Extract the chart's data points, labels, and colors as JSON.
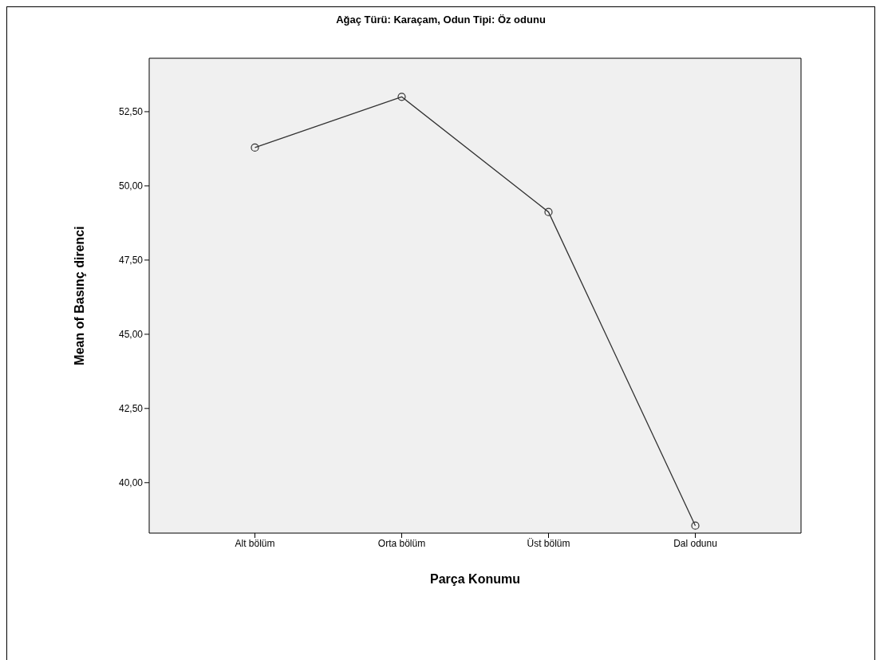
{
  "chart_data": {
    "type": "line",
    "title": "Ağaç Türü: Karaçam, Odun Tipi: Öz odunu",
    "xlabel": "Parça Konumu",
    "ylabel": "Mean of Basınç direnci",
    "categories": [
      "Alt bölüm",
      "Orta bölüm",
      "Üst bölüm",
      "Dal odunu"
    ],
    "series": [
      {
        "color": "#333333",
        "values": [
          51.29,
          53.0,
          49.12,
          38.55
        ]
      }
    ],
    "ylim": [
      38.3,
      54.3
    ],
    "yticks": [
      {
        "value": 40,
        "label": "40,00"
      },
      {
        "value": 42.5,
        "label": "42,50"
      },
      {
        "value": 45,
        "label": "45,00"
      },
      {
        "value": 47.5,
        "label": "47,50"
      },
      {
        "value": 50,
        "label": "50,00"
      },
      {
        "value": 52.5,
        "label": "52,50"
      }
    ],
    "grid": false,
    "marker": "circle",
    "line_style": "solid"
  }
}
